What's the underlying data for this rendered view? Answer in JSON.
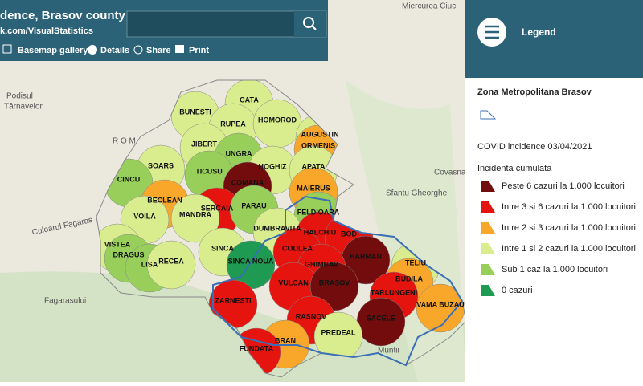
{
  "header": {
    "title": "dence, Brasov county",
    "subtitle": "k.com/VisualStatistics",
    "toolbar": [
      "Basemap gallery",
      "Details",
      "Share",
      "Print"
    ]
  },
  "legend": {
    "title": "Legend",
    "layer_title": "Zona Metropolitana Brasov",
    "covid_title": "COVID incidence 03/04/2021",
    "field": "Incidenta cumulata",
    "classes": [
      {
        "label": "Peste 6 cazuri la 1.000 locuitori",
        "color": "#730d0d"
      },
      {
        "label": "Intre 3 si 6 cazuri la 1.000 locuitori",
        "color": "#e5140f"
      },
      {
        "label": "Intre 2 si 3 cazuri la 1.000 locuitori",
        "color": "#f9a72b"
      },
      {
        "label": "Intre 1 si 2 cazuri la 1.000 locuitori",
        "color": "#d9ec8e"
      },
      {
        "label": "Sub 1 caz la 1.000 locuitori",
        "color": "#98cf5a"
      },
      {
        "label": "0 cazuri",
        "color": "#1f9a52"
      }
    ]
  },
  "map": {
    "localities": [
      {
        "name": "CATA",
        "color": "#d9ec8e"
      },
      {
        "name": "BUNESTI",
        "color": "#d9ec8e"
      },
      {
        "name": "RUPEA",
        "color": "#d9ec8e"
      },
      {
        "name": "HOMOROD",
        "color": "#d9ec8e"
      },
      {
        "name": "JIBERT",
        "color": "#d9ec8e"
      },
      {
        "name": "AUGUSTIN",
        "color": "#d9ec8e"
      },
      {
        "name": "ORMENIS",
        "color": "#f9a72b"
      },
      {
        "name": "UNGRA",
        "color": "#98cf5a"
      },
      {
        "name": "HOGHIZ",
        "color": "#d9ec8e"
      },
      {
        "name": "APATA",
        "color": "#d9ec8e"
      },
      {
        "name": "SOARS",
        "color": "#d9ec8e"
      },
      {
        "name": "TICUSU",
        "color": "#98cf5a"
      },
      {
        "name": "COMANA",
        "color": "#730d0d"
      },
      {
        "name": "MAIERUS",
        "color": "#f9a72b"
      },
      {
        "name": "CINCU",
        "color": "#98cf5a"
      },
      {
        "name": "BECLEAN",
        "color": "#f9a72b"
      },
      {
        "name": "SERCAIA",
        "color": "#e5140f"
      },
      {
        "name": "PARAU",
        "color": "#98cf5a"
      },
      {
        "name": "FELDIOARA",
        "color": "#98cf5a"
      },
      {
        "name": "VOILA",
        "color": "#d9ec8e"
      },
      {
        "name": "MANDRA",
        "color": "#d9ec8e"
      },
      {
        "name": "DUMBRAVITA",
        "color": "#d9ec8e"
      },
      {
        "name": "HALCHIU",
        "color": "#e5140f"
      },
      {
        "name": "BOD",
        "color": "#e5140f"
      },
      {
        "name": "VISTEA",
        "color": "#d9ec8e"
      },
      {
        "name": "DRAGUS",
        "color": "#98cf5a"
      },
      {
        "name": "LISA",
        "color": "#98cf5a"
      },
      {
        "name": "RECEA",
        "color": "#d9ec8e"
      },
      {
        "name": "SINCA",
        "color": "#d9ec8e"
      },
      {
        "name": "SINCA NOUA",
        "color": "#1f9a52"
      },
      {
        "name": "CODLEA",
        "color": "#e5140f"
      },
      {
        "name": "HARMAN",
        "color": "#730d0d"
      },
      {
        "name": "TELIU",
        "color": "#d9ec8e"
      },
      {
        "name": "GHIMBAV",
        "color": "#e5140f"
      },
      {
        "name": "BUDILA",
        "color": "#f9a72b"
      },
      {
        "name": "VULCAN",
        "color": "#e5140f"
      },
      {
        "name": "BRASOV",
        "color": "#730d0d"
      },
      {
        "name": "TARLUNGENI",
        "color": "#e5140f"
      },
      {
        "name": "ZARNESTI",
        "color": "#e5140f"
      },
      {
        "name": "VAMA BUZAU",
        "color": "#f9a72b"
      },
      {
        "name": "RASNOV",
        "color": "#e5140f"
      },
      {
        "name": "SACELE",
        "color": "#730d0d"
      },
      {
        "name": "PREDEAL",
        "color": "#d9ec8e"
      },
      {
        "name": "BRAN",
        "color": "#f9a72b"
      },
      {
        "name": "FUNDATA",
        "color": "#e5140f"
      }
    ],
    "places": [
      "Podisul",
      "Târnavelor",
      "R O M",
      "Covasna",
      "Sfantu Gheorghe",
      "Culoarul Fagaras",
      "Miercurea Ciuc",
      "Muntii",
      "Fagarasului"
    ]
  }
}
